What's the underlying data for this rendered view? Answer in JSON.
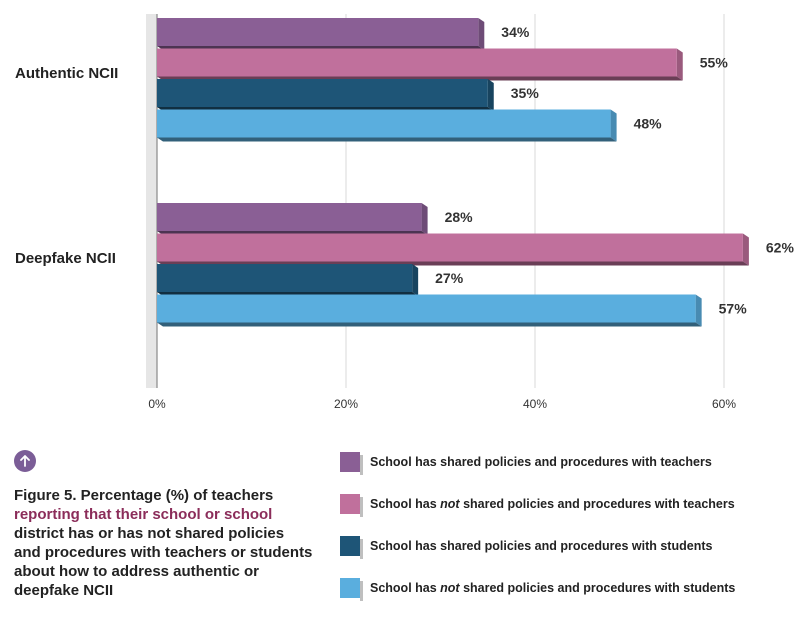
{
  "chart_data": {
    "type": "bar",
    "orientation": "horizontal",
    "categories": [
      "Authentic NCII",
      "Deepfake NCII"
    ],
    "series": [
      {
        "name": "School has shared policies and procedures with teachers",
        "values": [
          34,
          28
        ],
        "labels": [
          "34%",
          "28%"
        ],
        "color": "#8a5f95"
      },
      {
        "name": "School has not shared policies and procedures with teachers",
        "values": [
          55,
          62
        ],
        "labels": [
          "55%",
          "62%"
        ],
        "color": "#c0709c"
      },
      {
        "name": "School has shared policies and procedures with students",
        "values": [
          35,
          27
        ],
        "labels": [
          "35%",
          "27%"
        ],
        "color": "#1e5577"
      },
      {
        "name": "School has not shared policies and procedures with students",
        "values": [
          48,
          57
        ],
        "labels": [
          "48%",
          "57%"
        ],
        "color": "#5aaede"
      }
    ],
    "xlim": [
      0,
      60
    ],
    "xticks": [
      0,
      20,
      40,
      60
    ],
    "xtick_labels": [
      "0%",
      "20%",
      "40%",
      "60%"
    ],
    "grid": true,
    "legend_position": "bottom-right"
  },
  "legend": [
    {
      "pre": "School has shared policies and procedures with teachers",
      "em": "",
      "post": ""
    },
    {
      "pre": "School has ",
      "em": "not",
      "post": " shared policies and procedures with teachers"
    },
    {
      "pre": "School has shared policies and procedures with students",
      "em": "",
      "post": ""
    },
    {
      "pre": "School has ",
      "em": "not",
      "post": " shared policies and procedures with students"
    }
  ],
  "caption": {
    "lead": "Figure 5. Percentage (%) of teachers",
    "accent": "reporting that their school or school",
    "rest": "district has or has not shared policies and procedures with teachers or students about how to address authentic or deepfake NCII"
  },
  "icon": "arrow-up-circle-icon"
}
